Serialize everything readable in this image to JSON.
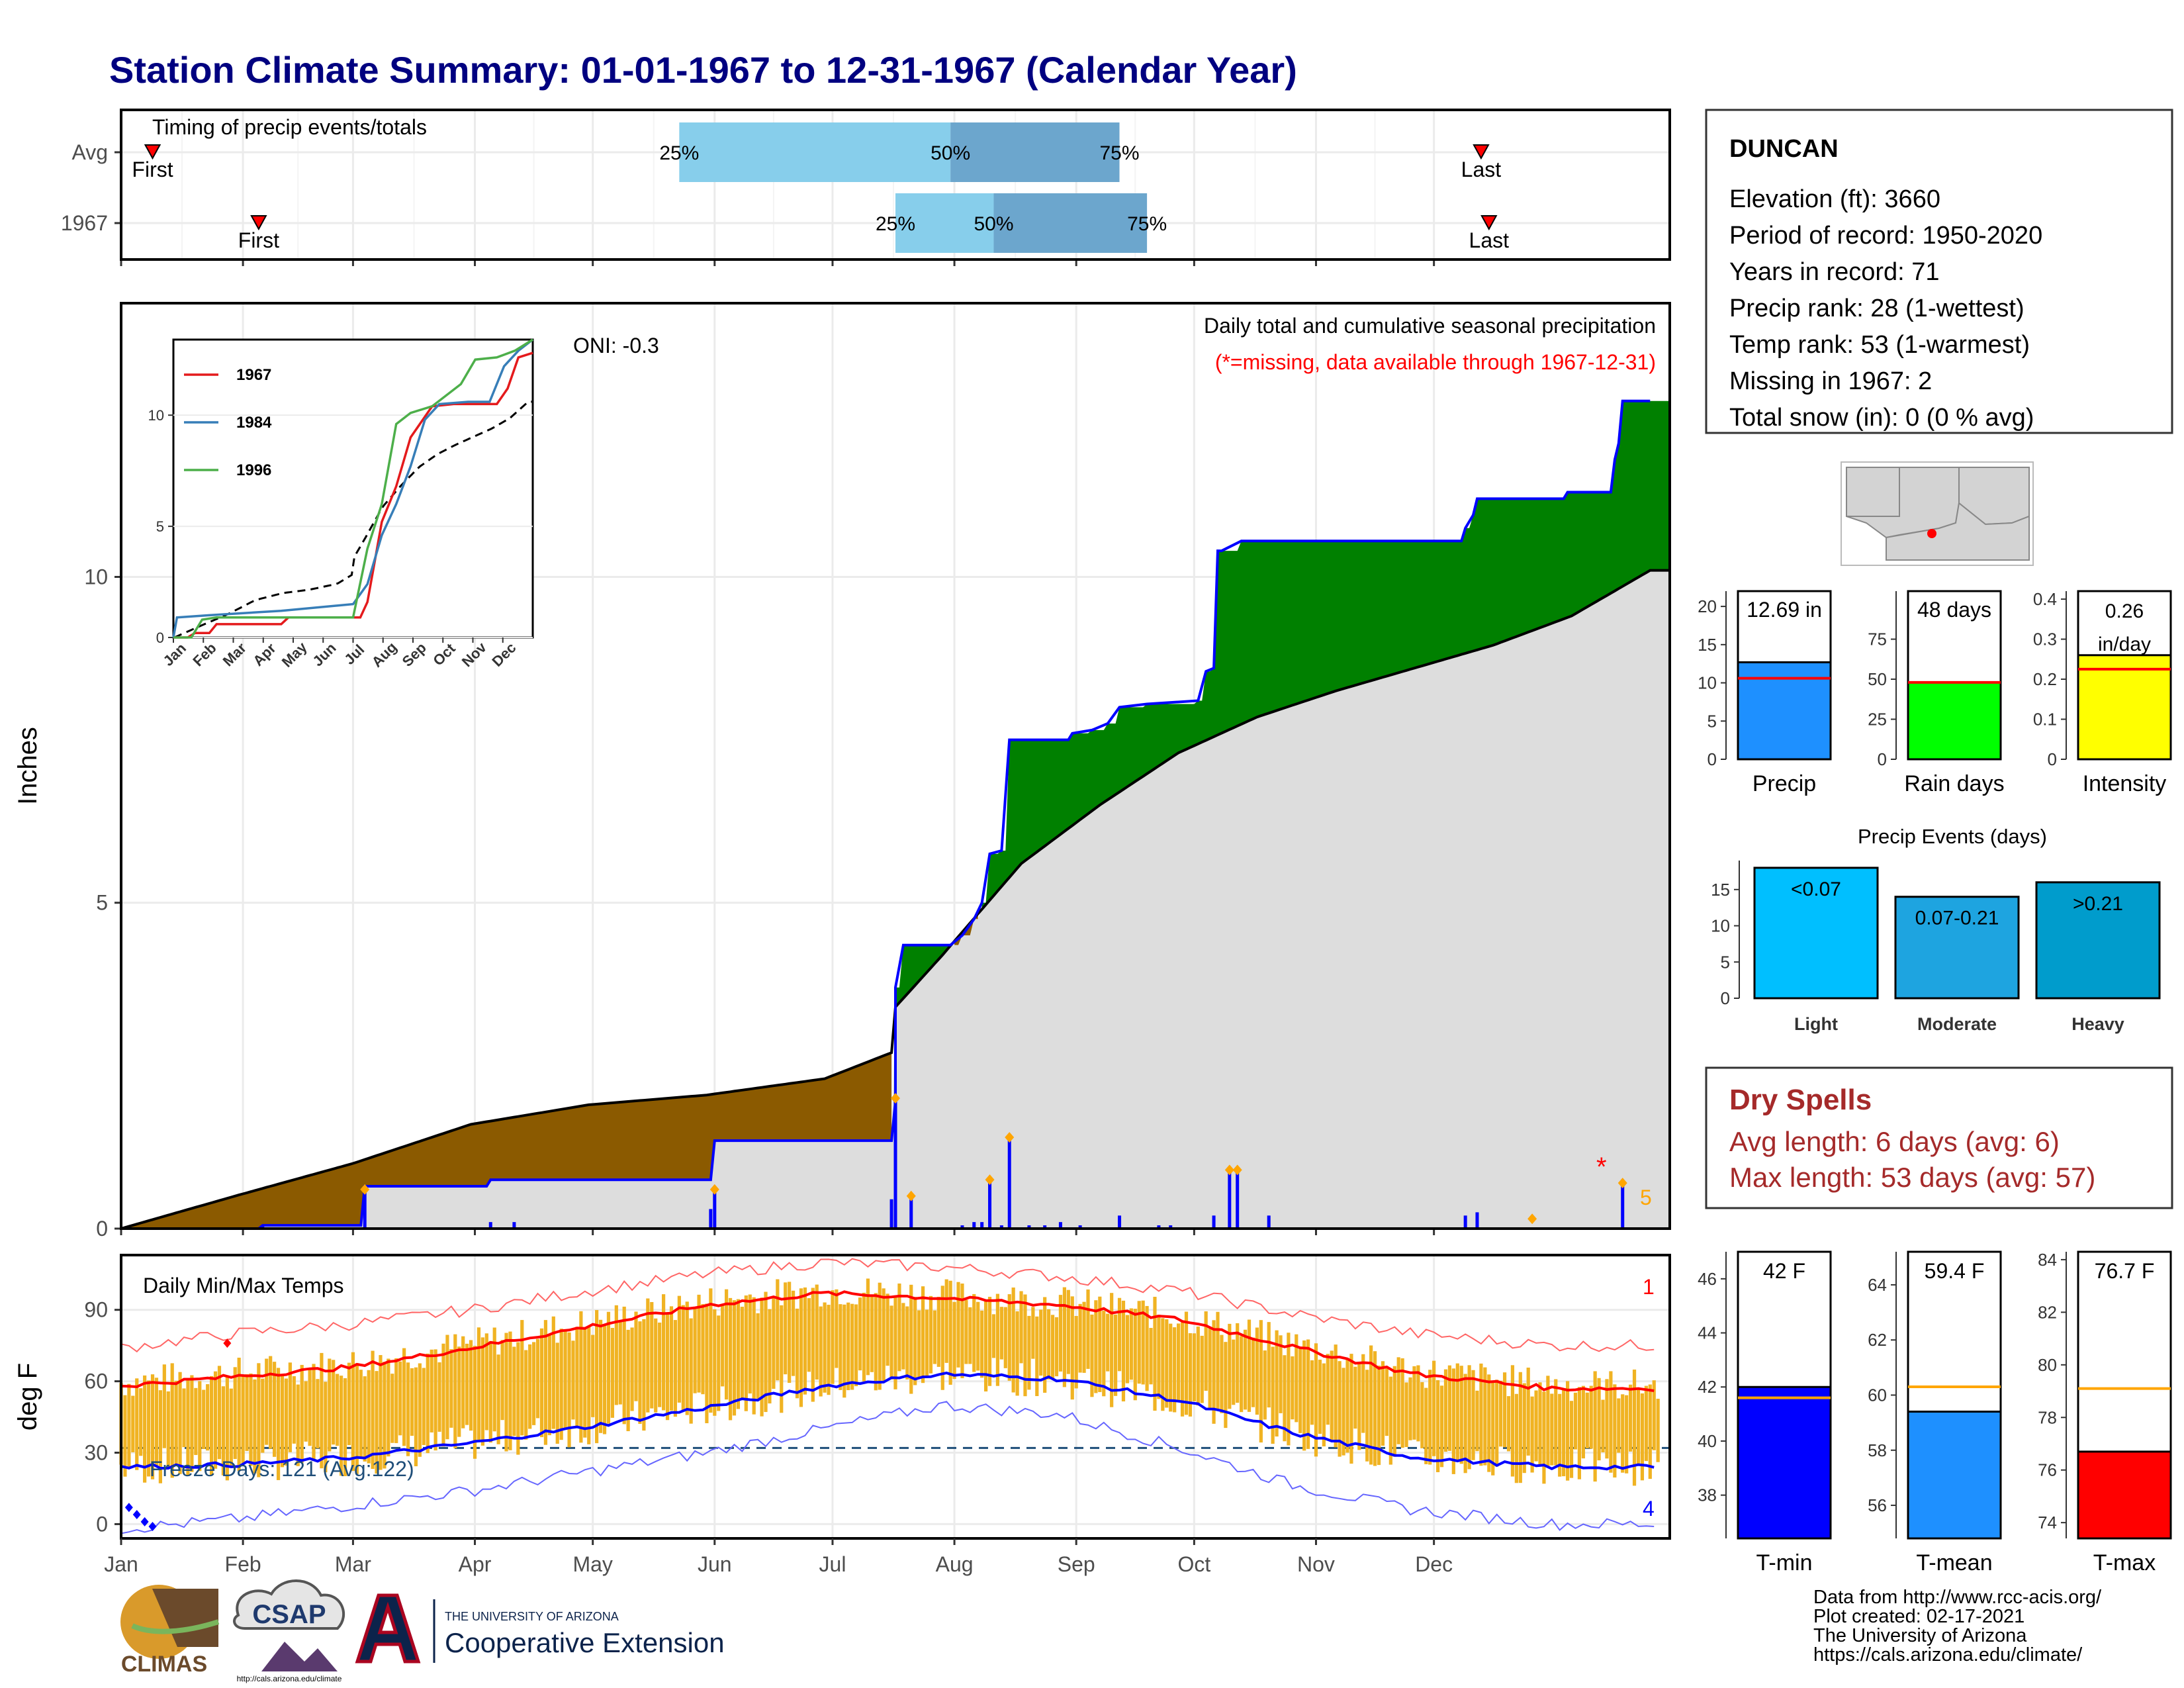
{
  "page": {
    "title": "Station Climate Summary: 01-01-1967 to 12-31-1967 (Calendar Year)"
  },
  "months": [
    "Jan",
    "Feb",
    "Mar",
    "Apr",
    "May",
    "Jun",
    "Jul",
    "Aug",
    "Sep",
    "Oct",
    "Nov",
    "Dec"
  ],
  "timing": {
    "title": "Timing of precip events/totals",
    "rows": [
      {
        "label": "Avg",
        "first_doy": 9,
        "last_doy": 347,
        "q25_doy": 143,
        "q50_doy": 212,
        "q75_doy": 255
      },
      {
        "label": "1967",
        "first_doy": 36,
        "last_doy": 349,
        "q25_doy": 198,
        "q50_doy": 223,
        "q75_doy": 262
      }
    ],
    "labels": {
      "first": "First",
      "last": "Last",
      "q25": "25%",
      "q50": "50%",
      "q75": "75%"
    }
  },
  "precip_panel": {
    "ylabel": "Inches",
    "yticks": [
      0,
      5,
      10
    ],
    "ylim": [
      0,
      14.2
    ],
    "title": "Daily total and cumulative seasonal precipitation",
    "subtitle": "(*=missing, data available through 1967-12-31)",
    "oni": "ONI: -0.3",
    "count_label": "5",
    "colors": {
      "cumulative": "#0000ff",
      "avg": "#000000",
      "above": "#008000",
      "below": "#8b5a00",
      "fill": "#dddddd",
      "bars": "#0000ff",
      "points": "#ffa500",
      "missing": "#ff0000"
    }
  },
  "chart_data": [
    {
      "type": "area",
      "title": "Daily total and cumulative seasonal precipitation",
      "ylabel": "Inches",
      "ylim": [
        0,
        14.2
      ],
      "series": [
        {
          "name": "cumulative_1967",
          "points": [
            [
              1,
              0
            ],
            [
              36,
              0
            ],
            [
              37,
              0.05
            ],
            [
              62,
              0.05
            ],
            [
              63,
              0.65
            ],
            [
              94,
              0.65
            ],
            [
              95,
              0.75
            ],
            [
              151,
              0.75
            ],
            [
              152,
              1.35
            ],
            [
              197,
              1.35
            ],
            [
              198,
              1.95
            ],
            [
              198,
              3.7
            ],
            [
              200,
              4.35
            ],
            [
              212,
              4.35
            ],
            [
              215,
              4.5
            ],
            [
              218,
              4.75
            ],
            [
              220,
              5.0
            ],
            [
              222,
              5.75
            ],
            [
              225,
              5.8
            ],
            [
              227,
              7.5
            ],
            [
              242,
              7.5
            ],
            [
              243,
              7.6
            ],
            [
              248,
              7.65
            ],
            [
              252,
              7.75
            ],
            [
              255,
              8.0
            ],
            [
              262,
              8.05
            ],
            [
              275,
              8.1
            ],
            [
              277,
              8.55
            ],
            [
              279,
              8.6
            ],
            [
              280,
              10.4
            ],
            [
              281,
              10.4
            ],
            [
              286,
              10.55
            ],
            [
              293,
              10.55
            ],
            [
              342,
              10.55
            ],
            [
              343,
              10.75
            ],
            [
              345,
              10.95
            ],
            [
              346,
              11.2
            ],
            [
              368,
              11.2
            ],
            [
              369,
              11.3
            ],
            [
              380,
              11.3
            ],
            [
              381,
              11.8
            ],
            [
              382,
              12.05
            ],
            [
              383,
              12.7
            ],
            [
              390,
              12.7
            ]
          ]
        },
        {
          "name": "average_cumulative",
          "points": [
            [
              1,
              0
            ],
            [
              30,
              0.5
            ],
            [
              60,
              1.0
            ],
            [
              90,
              1.6
            ],
            [
              120,
              1.9
            ],
            [
              150,
              2.05
            ],
            [
              180,
              2.3
            ],
            [
              197,
              2.7
            ],
            [
              198,
              3.4
            ],
            [
              210,
              4.2
            ],
            [
              230,
              5.6
            ],
            [
              250,
              6.5
            ],
            [
              270,
              7.3
            ],
            [
              290,
              7.85
            ],
            [
              310,
              8.25
            ],
            [
              330,
              8.6
            ],
            [
              350,
              8.95
            ],
            [
              370,
              9.4
            ],
            [
              390,
              10.1
            ]
          ]
        }
      ],
      "daily_precip": [
        [
          37,
          0.05
        ],
        [
          63,
          0.6
        ],
        [
          95,
          0.1
        ],
        [
          101,
          0.1
        ],
        [
          116,
          0.02
        ],
        [
          151,
          0.3
        ],
        [
          152,
          0.6
        ],
        [
          197,
          0.45
        ],
        [
          198,
          2.0
        ],
        [
          202,
          0.5
        ],
        [
          215,
          0.05
        ],
        [
          218,
          0.1
        ],
        [
          220,
          0.1
        ],
        [
          222,
          0.75
        ],
        [
          225,
          0.05
        ],
        [
          227,
          1.4
        ],
        [
          232,
          0.05
        ],
        [
          236,
          0.05
        ],
        [
          240,
          0.1
        ],
        [
          245,
          0.05
        ],
        [
          255,
          0.2
        ],
        [
          265,
          0.05
        ],
        [
          268,
          0.05
        ],
        [
          279,
          0.2
        ],
        [
          283,
          0.9
        ],
        [
          285,
          0.9
        ],
        [
          293,
          0.2
        ],
        [
          343,
          0.2
        ],
        [
          346,
          0.25
        ],
        [
          360,
          0.02
        ],
        [
          383,
          0.7
        ]
      ]
    },
    {
      "type": "line",
      "title": "Daily Min/Max Temps",
      "ylabel": "deg F",
      "yticks": [
        0,
        30,
        60,
        90
      ],
      "ylim": [
        -6,
        113
      ],
      "series": [
        {
          "name": "avg_max",
          "x": [
            1,
            30,
            60,
            90,
            120,
            150,
            180,
            210,
            240,
            270,
            300,
            330,
            365
          ],
          "values": [
            58,
            62,
            66,
            74,
            83,
            92,
            97,
            95,
            92,
            86,
            74,
            63,
            57
          ]
        },
        {
          "name": "avg_min",
          "x": [
            1,
            30,
            60,
            90,
            120,
            150,
            180,
            210,
            240,
            270,
            300,
            330,
            365
          ],
          "values": [
            24,
            25,
            28,
            34,
            41,
            49,
            58,
            63,
            61,
            52,
            38,
            28,
            24
          ]
        },
        {
          "name": "record_max",
          "x": [
            1,
            30,
            60,
            90,
            120,
            150,
            180,
            210,
            240,
            270,
            300,
            330,
            365
          ],
          "values": [
            74,
            80,
            84,
            90,
            98,
            105,
            110,
            108,
            104,
            98,
            88,
            80,
            75
          ]
        },
        {
          "name": "record_min",
          "x": [
            1,
            30,
            60,
            90,
            120,
            150,
            180,
            210,
            240,
            270,
            300,
            330,
            365
          ],
          "values": [
            -2,
            2,
            8,
            14,
            22,
            30,
            40,
            50,
            46,
            32,
            16,
            6,
            0
          ]
        }
      ]
    },
    {
      "type": "bar",
      "title": "Precip",
      "categories": [
        "Precip"
      ],
      "values": [
        12.69
      ],
      "average": 10.6,
      "ylim": [
        0,
        22
      ],
      "yticks": [
        0,
        5,
        10,
        15,
        20
      ]
    },
    {
      "type": "bar",
      "title": "Rain days",
      "categories": [
        "Rain days"
      ],
      "values": [
        48
      ],
      "average": 48,
      "ylim": [
        0,
        105
      ],
      "yticks": [
        0,
        25,
        50,
        75
      ]
    },
    {
      "type": "bar",
      "title": "Intensity",
      "categories": [
        "Intensity"
      ],
      "values": [
        0.26
      ],
      "average": 0.225,
      "ylim": [
        0,
        0.42
      ],
      "yticks": [
        0.0,
        0.1,
        0.2,
        0.3,
        0.4
      ]
    },
    {
      "type": "bar",
      "title": "Precip Events (days)",
      "categories": [
        "Light",
        "Moderate",
        "Heavy"
      ],
      "values": [
        18,
        14,
        16
      ],
      "bar_labels": [
        "<0.07",
        "0.07-0.21",
        ">0.21"
      ],
      "ylim": [
        0,
        19
      ],
      "yticks": [
        0,
        5,
        10,
        15
      ]
    },
    {
      "type": "bar",
      "title": "T-min",
      "categories": [
        "T-min"
      ],
      "values": [
        42
      ],
      "average": 41.6,
      "ylim": [
        36.4,
        47
      ],
      "yticks": [
        38,
        40,
        42,
        44,
        46
      ]
    },
    {
      "type": "bar",
      "title": "T-mean",
      "categories": [
        "T-mean"
      ],
      "values": [
        59.4
      ],
      "average": 60.3,
      "ylim": [
        54.8,
        65.2
      ],
      "yticks": [
        56,
        58,
        60,
        62,
        64
      ]
    },
    {
      "type": "bar",
      "title": "T-max",
      "categories": [
        "T-max"
      ],
      "values": [
        76.7
      ],
      "average": 79.1,
      "ylim": [
        73.4,
        84.3
      ],
      "yticks": [
        74,
        76,
        78,
        80,
        82,
        84
      ]
    }
  ],
  "inset": {
    "series": [
      {
        "name": "1967",
        "color": "#e41a1c"
      },
      {
        "name": "1984",
        "color": "#377eb8"
      },
      {
        "name": "1996",
        "color": "#4daf4a"
      }
    ],
    "yticks": [
      0,
      5,
      10
    ],
    "months": [
      "Jan",
      "Feb",
      "Mar",
      "Apr",
      "May",
      "Jun",
      "Jul",
      "Aug",
      "Sep",
      "Oct",
      "Nov",
      "Dec"
    ]
  },
  "temp_panel": {
    "title": "Daily Min/Max Temps",
    "ylabel": "deg F",
    "freeze": "Freeze Days: 121 (Avg:122)",
    "record_hi_count": "1",
    "record_lo_count": "4"
  },
  "station": {
    "name": "DUNCAN",
    "lines": [
      "Elevation (ft): 3660",
      "Period of record: 1950-2020",
      "Years in record: 71",
      "Precip rank: 28 (1-wettest)",
      "Temp rank: 53 (1-warmest)",
      "Missing in 1967: 2",
      "Total snow (in): 0 (0 % avg)"
    ]
  },
  "mini_bars": [
    {
      "label": "Precip",
      "value_text": "12.69 in",
      "color": "#1e90ff"
    },
    {
      "label": "Rain days",
      "value_text": "48 days",
      "color": "#00ff00"
    },
    {
      "label": "Intensity",
      "value_text": "0.26 in/day",
      "color": "#ffff00"
    }
  ],
  "events": {
    "title": "Precip Events (days)",
    "colors": [
      "#00bfff",
      "#1ea4e0",
      "#009ccc"
    ]
  },
  "dry_spells": {
    "title": "Dry Spells",
    "avg": "Avg length: 6 days (avg: 6)",
    "max": "Max length: 53 days (avg: 57)"
  },
  "temp_bars": [
    {
      "label": "T-min",
      "value_text": "42 F",
      "color": "#0000ff"
    },
    {
      "label": "T-mean",
      "value_text": "59.4 F",
      "color": "#1e90ff"
    },
    {
      "label": "T-max",
      "value_text": "76.7 F",
      "color": "#ff0000"
    }
  ],
  "footer": {
    "lines": [
      "Data from http://www.rcc-acis.org/",
      "Plot created: 02-17-2021",
      "The University of Arizona",
      "https://cals.arizona.edu/climate/"
    ],
    "logos": {
      "climas": "CLIMAS",
      "csap": "CSAP",
      "csap_url": "http://cals.arizona.edu/climate",
      "ua_small": "THE UNIVERSITY OF ARIZONA",
      "ua_large": "Cooperative Extension"
    }
  }
}
